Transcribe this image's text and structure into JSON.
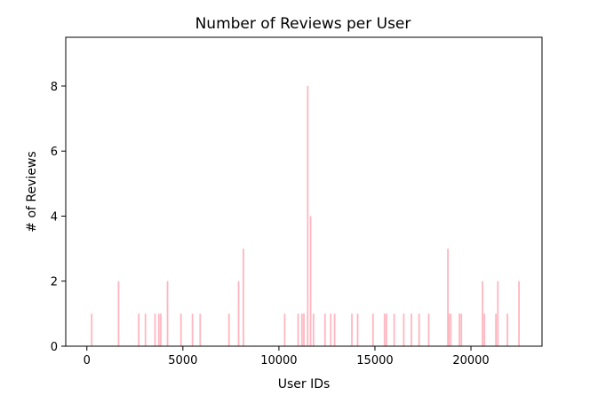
{
  "chart_data": {
    "type": "bar",
    "title": "Number of Reviews per User",
    "xlabel": "User IDs",
    "ylabel": "# of Reviews",
    "xlim": [
      -1100,
      23700
    ],
    "ylim": [
      0,
      9.5
    ],
    "xticks": [
      0,
      5000,
      10000,
      15000,
      20000
    ],
    "yticks": [
      0,
      2,
      4,
      6,
      8
    ],
    "grid": false,
    "bar_color": "#ffb6c1",
    "x": [
      250,
      1650,
      2700,
      3050,
      3550,
      3750,
      3850,
      4200,
      4900,
      5500,
      5900,
      7400,
      7900,
      8150,
      10300,
      11000,
      11200,
      11300,
      11500,
      11650,
      11800,
      12400,
      12700,
      12900,
      13800,
      14100,
      14900,
      15500,
      15600,
      16000,
      16500,
      16900,
      17300,
      17800,
      18800,
      18850,
      18950,
      19400,
      19500,
      20600,
      20700,
      21300,
      21400,
      21900,
      22500
    ],
    "values": [
      1,
      2,
      1,
      1,
      1,
      1,
      1,
      2,
      1,
      1,
      1,
      1,
      2,
      3,
      1,
      1,
      1,
      1,
      8,
      4,
      1,
      1,
      1,
      1,
      1,
      1,
      1,
      1,
      1,
      1,
      1,
      1,
      1,
      1,
      3,
      1,
      1,
      1,
      1,
      2,
      1,
      1,
      2,
      1,
      2
    ]
  }
}
